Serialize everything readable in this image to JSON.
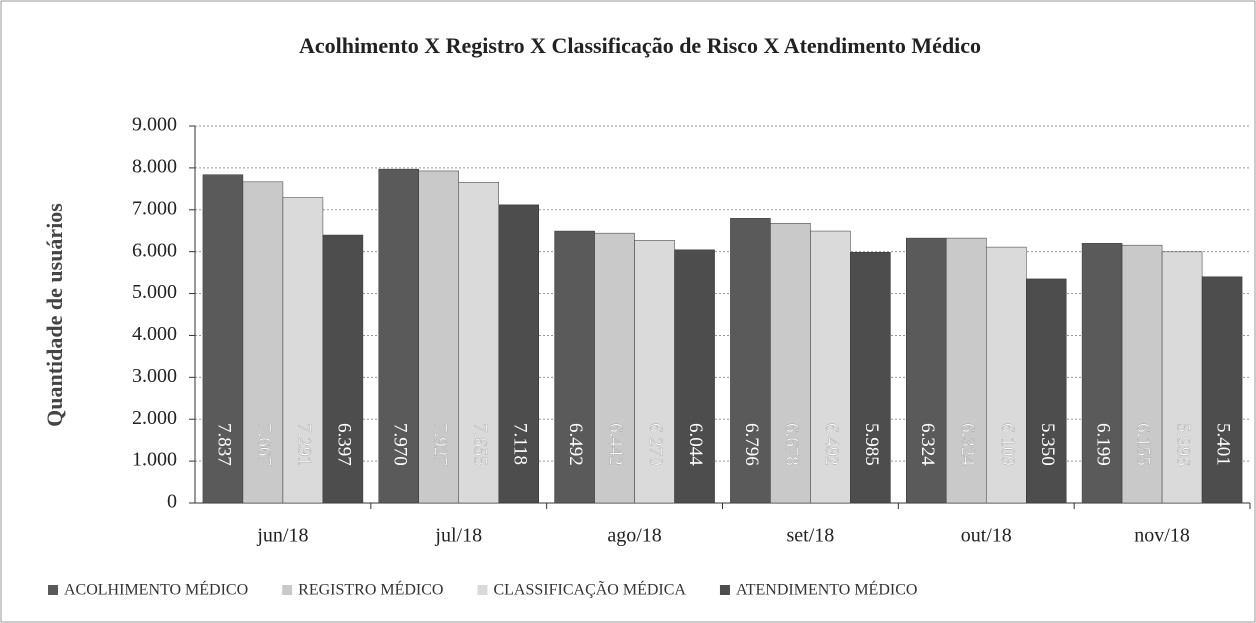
{
  "chart_data": {
    "type": "bar",
    "title": "Acolhimento  X Registro X Classificação de Risco X Atendimento  Médico",
    "ylabel": "Quantidade  de usuários",
    "categories": [
      "jun/18",
      "jul/18",
      "ago/18",
      "set/18",
      "out/18",
      "nov/18"
    ],
    "series": [
      {
        "name": "ACOLHIMENTO MÉDICO",
        "color": "#5a5a5a",
        "values": [
          7837,
          7970,
          6492,
          6796,
          6324,
          6199
        ],
        "value_labels": [
          "7.837",
          "7.970",
          "6.492",
          "6.796",
          "6.324",
          "6.199"
        ]
      },
      {
        "name": "REGISTRO MÉDICO",
        "color": "#c9c9c9",
        "values": [
          7667,
          7927,
          6442,
          6678,
          6324,
          6155
        ],
        "value_labels": [
          "7.667",
          "7.927",
          "6.442",
          "6.678",
          "6.324",
          "6.155"
        ]
      },
      {
        "name": "CLASSIFICAÇÃO MÉDICA",
        "color": "#dadada",
        "values": [
          7291,
          7655,
          6270,
          6492,
          6109,
          5996
        ],
        "value_labels": [
          "7.291",
          "7.655",
          "6.270",
          "6.492",
          "6.109",
          "5.996"
        ]
      },
      {
        "name": "ATENDIMENTO MÉDICO",
        "color": "#4d4d4d",
        "values": [
          6397,
          7118,
          6044,
          5985,
          5350,
          5401
        ],
        "value_labels": [
          "6.397",
          "7.118",
          "6.044",
          "5.985",
          "5.350",
          "5.401"
        ]
      }
    ],
    "ylim": [
      0,
      9000
    ],
    "yticks": [
      0,
      {
        "value": 1000,
        "label": "1.000"
      },
      {
        "value": 2000,
        "label": "2.000"
      },
      {
        "value": 3000,
        "label": "3.000"
      },
      {
        "value": 4000,
        "label": "4.000"
      },
      {
        "value": 5000,
        "label": "5.000"
      },
      {
        "value": 6000,
        "label": "6.000"
      },
      {
        "value": 7000,
        "label": "7.000"
      },
      {
        "value": 8000,
        "label": "8.000"
      },
      {
        "value": 9000,
        "label": "9.000"
      }
    ],
    "grid": true,
    "legend": "bottom"
  }
}
